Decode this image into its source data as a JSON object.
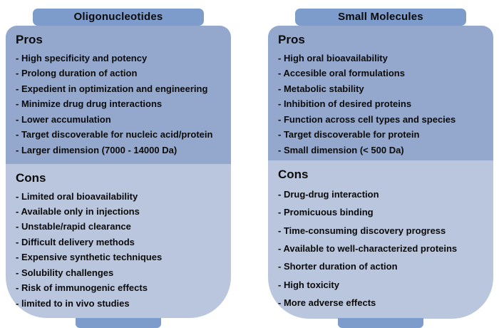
{
  "colors": {
    "tab": "#7d9bcb",
    "pros_bg": "#94a8ce",
    "cons_bg": "#bac6dd",
    "text": "#0b0b0b"
  },
  "columns": [
    {
      "title": "Oligonucleotides",
      "pros_label": "Pros",
      "pros": [
        "- High specificity and potency",
        "- Prolong duration of action",
        "- Expedient in optimization and engineering",
        "- Minimize drug drug interactions",
        "- Lower accumulation",
        "- Target discoverable for nucleic acid/protein",
        "- Larger dimension (7000 - 14000 Da)"
      ],
      "cons_label": "Cons",
      "cons": [
        "- Limited oral bioavailability",
        "- Available only in injections",
        "- Unstable/rapid clearance",
        "- Difficult delivery methods",
        "- Expensive synthetic techniques",
        "- Solubility challenges",
        "- Risk of immunogenic effects",
        "- limited to in vivo studies"
      ]
    },
    {
      "title": "Small Molecules",
      "pros_label": "Pros",
      "pros": [
        "- High oral bioavailability",
        "- Accesible oral formulations",
        "- Metabolic stability",
        "- Inhibition of desired proteins",
        "- Function across cell types and species",
        "- Target discoverable for protein",
        "- Small dimension (< 500 Da)"
      ],
      "cons_label": "Cons",
      "cons": [
        "- Drug-drug interaction",
        "- Promicuous binding",
        "- Time-consuming discovery progress",
        "- Available to well-characterized proteins",
        "- Shorter duration of action",
        "- High toxicity",
        "- More adverse effects"
      ]
    }
  ]
}
